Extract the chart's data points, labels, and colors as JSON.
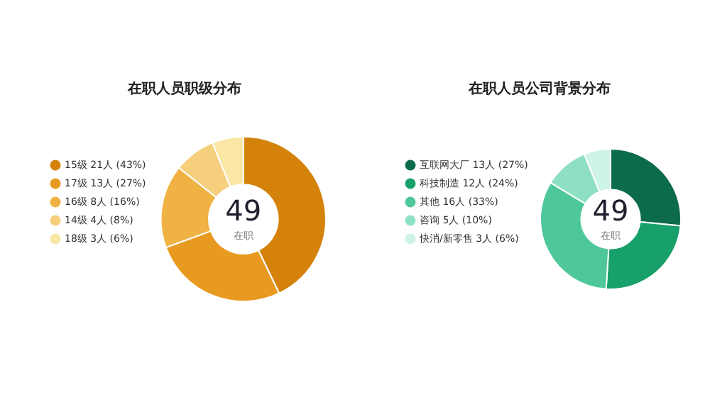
{
  "chart_data": [
    {
      "type": "donut",
      "title": "在职人员职级分布",
      "categories": [
        "15级 21人 (43%)",
        "17级 13人 (27%)",
        "16级 8人 (16%)",
        "14级 4人 (8%)",
        "18级 3人 (6%)"
      ],
      "values": [
        21,
        13,
        8,
        4,
        3
      ],
      "colors": [
        "#d4820a",
        "#e89a20",
        "#f0b243",
        "#f5cf7e",
        "#fae7a6"
      ],
      "legend": "left",
      "annotations": [
        "49",
        "在职"
      ]
    },
    {
      "type": "donut",
      "title": "在职人员公司背景分布",
      "categories": [
        "互联网大厂 13人 (27%)",
        "科技制造 12人 (24%)",
        "其他 16人 (33%)",
        "咨询 5人 (10%)",
        "快消/新零售 3人 (6%)"
      ],
      "values": [
        13,
        12,
        16,
        5,
        3
      ],
      "colors": [
        "#0d6b4d",
        "#17a06a",
        "#4ec79a",
        "#8fe0c3",
        "#cdf4e4"
      ],
      "legend": "left",
      "annotations": [
        "49",
        "在职"
      ]
    }
  ]
}
